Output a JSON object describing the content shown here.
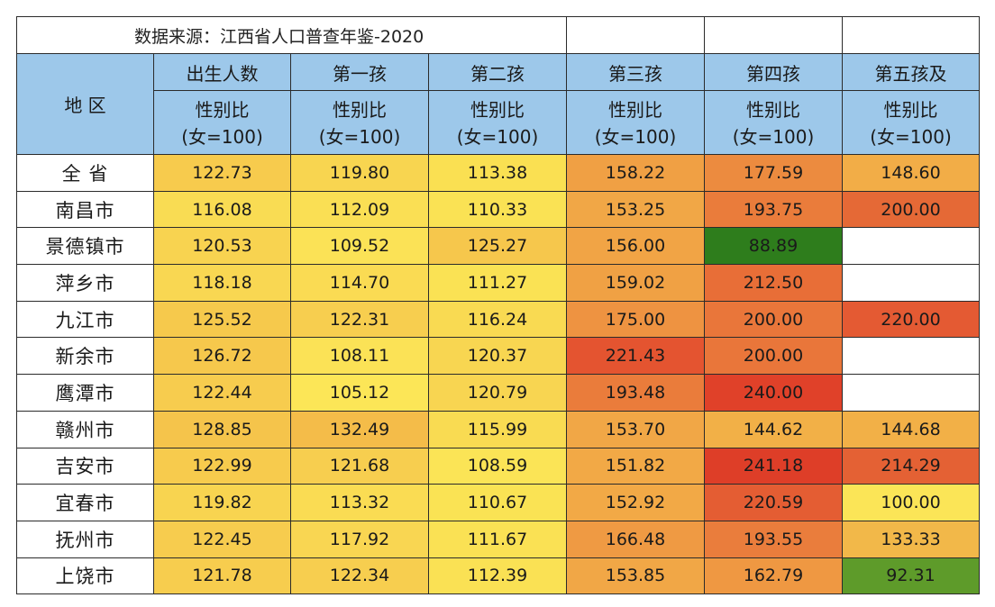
{
  "source_note": "数据来源：江西省人口普查年鉴-2020",
  "region_header": "地 区",
  "columns": [
    {
      "top": "出生人数",
      "sub1": "性别比",
      "sub2": "(女=100)"
    },
    {
      "top": "第一孩",
      "sub1": "性别比",
      "sub2": "(女=100)"
    },
    {
      "top": "第二孩",
      "sub1": "性别比",
      "sub2": "(女=100)"
    },
    {
      "top": "第三孩",
      "sub1": "性别比",
      "sub2": "(女=100)"
    },
    {
      "top": "第四孩",
      "sub1": "性别比",
      "sub2": "(女=100)"
    },
    {
      "top": "第五孩及",
      "sub1": "性别比",
      "sub2": "(女=100)"
    }
  ],
  "rows": [
    {
      "region": "全 省",
      "values": [
        "122.73",
        "119.80",
        "113.38",
        "158.22",
        "177.59",
        "148.60"
      ]
    },
    {
      "region": "南昌市",
      "values": [
        "116.08",
        "112.09",
        "110.33",
        "153.25",
        "193.75",
        "200.00"
      ]
    },
    {
      "region": "景德镇市",
      "values": [
        "120.53",
        "109.52",
        "125.27",
        "156.00",
        "88.89",
        ""
      ]
    },
    {
      "region": "萍乡市",
      "values": [
        "118.18",
        "114.70",
        "111.27",
        "159.02",
        "212.50",
        ""
      ]
    },
    {
      "region": "九江市",
      "values": [
        "125.52",
        "122.31",
        "116.24",
        "175.00",
        "200.00",
        "220.00"
      ]
    },
    {
      "region": "新余市",
      "values": [
        "126.72",
        "108.11",
        "120.37",
        "221.43",
        "200.00",
        ""
      ]
    },
    {
      "region": "鹰潭市",
      "values": [
        "122.44",
        "105.12",
        "120.79",
        "193.48",
        "240.00",
        ""
      ]
    },
    {
      "region": "赣州市",
      "values": [
        "128.85",
        "132.49",
        "115.99",
        "153.70",
        "144.62",
        "144.68"
      ]
    },
    {
      "region": "吉安市",
      "values": [
        "122.99",
        "121.68",
        "108.59",
        "151.82",
        "241.18",
        "214.29"
      ]
    },
    {
      "region": "宜春市",
      "values": [
        "119.82",
        "113.32",
        "110.67",
        "152.92",
        "220.59",
        "100.00"
      ]
    },
    {
      "region": "抚州市",
      "values": [
        "122.45",
        "117.92",
        "111.67",
        "166.48",
        "193.55",
        "133.33"
      ]
    },
    {
      "region": "上饶市",
      "values": [
        "121.78",
        "122.34",
        "112.39",
        "153.85",
        "162.79",
        "92.31"
      ]
    }
  ],
  "cell_colors": [
    [
      "#f7cb4d",
      "#f8d550",
      "#fae052",
      "#f0a044",
      "#ec8b3f",
      "#f2ad47"
    ],
    [
      "#f9dc53",
      "#fadf54",
      "#fae254",
      "#f1a746",
      "#ea7c3b",
      "#e56936"
    ],
    [
      "#f8d350",
      "#fbe256",
      "#f6c74c",
      "#f1a445",
      "#2e7d1c",
      "#ffffff"
    ],
    [
      "#f9d752",
      "#fadb53",
      "#fae254",
      "#f0a144",
      "#e86e37",
      "#ffffff"
    ],
    [
      "#f6c94c",
      "#f7ce4f",
      "#f9da52",
      "#ee9341",
      "#e9763a",
      "#e45a33"
    ],
    [
      "#f6c84c",
      "#fbe256",
      "#f8d651",
      "#e45430",
      "#e9763a",
      "#ffffff"
    ],
    [
      "#f7cc4e",
      "#fce657",
      "#f8d551",
      "#ea7c3b",
      "#e04129",
      "#ffffff"
    ],
    [
      "#f5c44b",
      "#f4bc49",
      "#f9db52",
      "#f1a746",
      "#f2b047",
      "#f2b047"
    ],
    [
      "#f7cb4d",
      "#f7ce4f",
      "#fbe456",
      "#f2a946",
      "#de3e28",
      "#e46134"
    ],
    [
      "#f8d450",
      "#fadc53",
      "#fae354",
      "#f2a946",
      "#e45d33",
      "#fbe557"
    ],
    [
      "#f7cc4e",
      "#f9d652",
      "#fae154",
      "#ef9a43",
      "#ea7d3c",
      "#f2b849"
    ],
    [
      "#f7cd4e",
      "#f7ce4f",
      "#fae154",
      "#f1a746",
      "#ef9842",
      "#5e9b2a"
    ]
  ]
}
